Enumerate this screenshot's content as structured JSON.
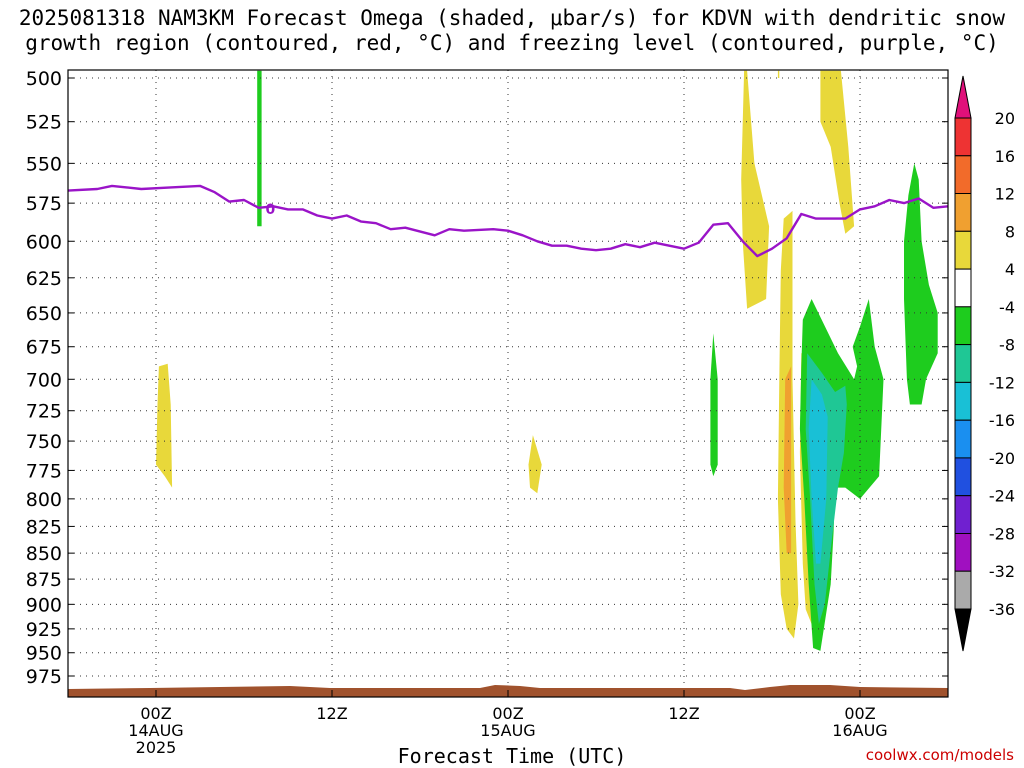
{
  "title_line1": "2025081318 NAM3KM Forecast Omega (shaded, μbar/s) for KDVN with dendritic snow",
  "title_line2": "growth region (contoured, red, °C) and freezing level (contoured, purple, °C)",
  "credit": "coolwx.com/models",
  "chart_data": {
    "type": "heatmap",
    "title": "2025081318 NAM3KM Forecast Omega (shaded, μbar/s) for KDVN with dendritic snow growth region (contoured, red, °C) and freezing level (contoured, purple, °C)",
    "xlabel": "Forecast Time (UTC)",
    "ylabel": "",
    "x_unit": "hours since 2025-08-13 18Z",
    "xlim": [
      0,
      60
    ],
    "ylim_hPa": [
      500,
      990
    ],
    "y_scale": "log (pressure)",
    "grid": true,
    "x_ticks": [
      {
        "h": 6,
        "label": "00Z",
        "sub1": "14AUG",
        "sub2": "2025"
      },
      {
        "h": 18,
        "label": "12Z",
        "sub1": "",
        "sub2": ""
      },
      {
        "h": 30,
        "label": "00Z",
        "sub1": "15AUG",
        "sub2": ""
      },
      {
        "h": 42,
        "label": "12Z",
        "sub1": "",
        "sub2": ""
      },
      {
        "h": 54,
        "label": "00Z",
        "sub1": "16AUG",
        "sub2": ""
      }
    ],
    "y_ticks": [
      500,
      525,
      550,
      575,
      600,
      625,
      650,
      675,
      700,
      725,
      750,
      775,
      800,
      825,
      850,
      875,
      900,
      925,
      950,
      975
    ],
    "colorbar": {
      "labels": [
        "20",
        "16",
        "12",
        "8",
        "4",
        "-4",
        "-8",
        "-12",
        "-16",
        "-20",
        "-24",
        "-28",
        "-32",
        "-36"
      ],
      "bands": [
        {
          "lo": 16,
          "hi": 20,
          "color": "#ee3333"
        },
        {
          "lo": 12,
          "hi": 16,
          "color": "#f26b2a"
        },
        {
          "lo": 8,
          "hi": 12,
          "color": "#f0a030"
        },
        {
          "lo": 4,
          "hi": 8,
          "color": "#e8d83a"
        },
        {
          "lo": -4,
          "hi": 4,
          "color": "#ffffff"
        },
        {
          "lo": -8,
          "hi": -4,
          "color": "#1ecc1e"
        },
        {
          "lo": -12,
          "hi": -8,
          "color": "#1fc795"
        },
        {
          "lo": -16,
          "hi": -12,
          "color": "#19c0d6"
        },
        {
          "lo": -20,
          "hi": -16,
          "color": "#1a8ff0"
        },
        {
          "lo": -24,
          "hi": -20,
          "color": "#2050e0"
        },
        {
          "lo": -28,
          "hi": -24,
          "color": "#7020d0"
        },
        {
          "lo": -32,
          "hi": -28,
          "color": "#a010c0"
        },
        {
          "lo": -36,
          "hi": -32,
          "color": "#aaaaaa"
        }
      ],
      "top_arrow_color": "#e0107a",
      "bottom_arrow_color": "#000000"
    },
    "freezing_level": {
      "label": "0",
      "color": "#9a14c8",
      "points": [
        [
          0,
          567
        ],
        [
          2,
          566
        ],
        [
          3,
          564
        ],
        [
          4,
          565
        ],
        [
          5,
          566
        ],
        [
          7,
          565
        ],
        [
          9,
          564
        ],
        [
          10,
          568
        ],
        [
          11,
          574
        ],
        [
          12,
          573
        ],
        [
          13,
          578
        ],
        [
          14,
          577
        ],
        [
          15,
          579
        ],
        [
          16,
          579
        ],
        [
          17,
          583
        ],
        [
          18,
          585
        ],
        [
          19,
          583
        ],
        [
          20,
          587
        ],
        [
          21,
          588
        ],
        [
          22,
          592
        ],
        [
          23,
          591
        ],
        [
          25,
          596
        ],
        [
          26,
          592
        ],
        [
          27,
          593
        ],
        [
          29,
          592
        ],
        [
          30,
          593
        ],
        [
          31,
          596
        ],
        [
          32,
          600
        ],
        [
          33,
          603
        ],
        [
          34,
          603
        ],
        [
          35,
          605
        ],
        [
          36,
          606
        ],
        [
          37,
          605
        ],
        [
          38,
          602
        ],
        [
          39,
          604
        ],
        [
          40,
          601
        ],
        [
          41,
          603
        ],
        [
          42,
          605
        ],
        [
          43,
          601
        ],
        [
          44,
          589
        ],
        [
          45,
          588
        ],
        [
          46,
          600
        ],
        [
          47,
          610
        ],
        [
          48,
          605
        ],
        [
          49,
          598
        ],
        [
          50,
          582
        ],
        [
          51,
          585
        ],
        [
          52,
          585
        ],
        [
          53,
          585
        ],
        [
          54,
          579
        ],
        [
          55,
          577
        ],
        [
          56,
          573
        ],
        [
          57,
          575
        ],
        [
          58,
          572
        ],
        [
          59,
          578
        ],
        [
          60,
          577
        ]
      ]
    },
    "omega_regions": [
      {
        "value": -6,
        "color": "#1ecc1e",
        "points": [
          [
            12.9,
            496
          ],
          [
            13.2,
            496
          ],
          [
            13.2,
            552
          ],
          [
            13.2,
            590
          ],
          [
            12.9,
            590
          ],
          [
            12.9,
            552
          ]
        ]
      },
      {
        "value": 6,
        "color": "#e8d83a",
        "points": [
          [
            6.2,
            690
          ],
          [
            6.8,
            688
          ],
          [
            7.0,
            720
          ],
          [
            7.1,
            790
          ],
          [
            6.6,
            780
          ],
          [
            6.0,
            770
          ],
          [
            6.1,
            720
          ]
        ]
      },
      {
        "value": 6,
        "color": "#e8d83a",
        "points": [
          [
            31.7,
            745
          ],
          [
            32.3,
            770
          ],
          [
            32.0,
            795
          ],
          [
            31.5,
            790
          ],
          [
            31.4,
            770
          ]
        ]
      },
      {
        "value": 6,
        "color": "#e8d83a",
        "points": [
          [
            46.1,
            496
          ],
          [
            46.3,
            496
          ],
          [
            46.8,
            550
          ],
          [
            47.8,
            590
          ],
          [
            47.6,
            640
          ],
          [
            46.3,
            647
          ],
          [
            46.0,
            600
          ],
          [
            45.9,
            560
          ]
        ]
      },
      {
        "value": 6,
        "color": "#e8d83a",
        "points": [
          [
            48.4,
            496
          ],
          [
            48.5,
            496
          ],
          [
            48.5,
            500
          ],
          [
            48.4,
            500
          ]
        ]
      },
      {
        "value": 6,
        "color": "#e8d83a",
        "points": [
          [
            51.3,
            496
          ],
          [
            52.7,
            496
          ],
          [
            53.2,
            540
          ],
          [
            53.6,
            590
          ],
          [
            53.0,
            595
          ],
          [
            52.6,
            575
          ],
          [
            52.0,
            540
          ],
          [
            51.3,
            525
          ]
        ]
      },
      {
        "value": 6,
        "color": "#e8d83a",
        "points": [
          [
            48.8,
            585
          ],
          [
            49.4,
            580
          ],
          [
            49.4,
            700
          ],
          [
            49.6,
            820
          ],
          [
            49.8,
            900
          ],
          [
            49.5,
            935
          ],
          [
            49.0,
            925
          ],
          [
            48.6,
            890
          ],
          [
            48.4,
            800
          ],
          [
            48.5,
            700
          ],
          [
            48.6,
            620
          ]
        ]
      },
      {
        "value": 6,
        "color": "#e8d83a",
        "points": [
          [
            50.0,
            680
          ],
          [
            50.6,
            680
          ],
          [
            50.9,
            760
          ],
          [
            50.9,
            860
          ],
          [
            50.7,
            920
          ],
          [
            50.3,
            905
          ],
          [
            50.1,
            860
          ],
          [
            49.9,
            760
          ]
        ]
      },
      {
        "value": 10,
        "color": "#f0a030",
        "points": [
          [
            48.9,
            700
          ],
          [
            49.3,
            690
          ],
          [
            49.3,
            790
          ],
          [
            49.3,
            850
          ],
          [
            49.0,
            850
          ],
          [
            48.8,
            790
          ]
        ]
      },
      {
        "value": -6,
        "color": "#1ecc1e",
        "points": [
          [
            44.0,
            665
          ],
          [
            44.3,
            700
          ],
          [
            44.3,
            770
          ],
          [
            44.0,
            780
          ],
          [
            43.8,
            770
          ],
          [
            43.8,
            700
          ]
        ]
      },
      {
        "value": -6,
        "color": "#1ecc1e",
        "points": [
          [
            50.7,
            640
          ],
          [
            52.5,
            680
          ],
          [
            53.6,
            700
          ],
          [
            53.8,
            690
          ],
          [
            53.5,
            675
          ],
          [
            54.0,
            660
          ],
          [
            54.6,
            640
          ],
          [
            55.0,
            675
          ],
          [
            55.6,
            700
          ],
          [
            55.3,
            780
          ],
          [
            54.0,
            800
          ],
          [
            53.0,
            790
          ],
          [
            52.3,
            790
          ],
          [
            52.2,
            830
          ],
          [
            52.0,
            880
          ],
          [
            51.3,
            948
          ],
          [
            50.8,
            945
          ],
          [
            50.5,
            880
          ],
          [
            50.2,
            800
          ],
          [
            49.9,
            740
          ],
          [
            50.0,
            690
          ],
          [
            50.1,
            655
          ]
        ]
      },
      {
        "value": -10,
        "color": "#1fc795",
        "points": [
          [
            50.4,
            680
          ],
          [
            51.4,
            695
          ],
          [
            52.3,
            710
          ],
          [
            53.0,
            705
          ],
          [
            53.1,
            720
          ],
          [
            52.9,
            760
          ],
          [
            52.5,
            790
          ],
          [
            52.1,
            835
          ],
          [
            51.6,
            900
          ],
          [
            51.2,
            920
          ],
          [
            50.9,
            880
          ],
          [
            50.6,
            800
          ],
          [
            50.3,
            740
          ]
        ]
      },
      {
        "value": -14,
        "color": "#19c0d6",
        "points": [
          [
            50.7,
            700
          ],
          [
            51.4,
            712
          ],
          [
            51.8,
            730
          ],
          [
            51.7,
            800
          ],
          [
            51.3,
            860
          ],
          [
            51.0,
            860
          ],
          [
            50.7,
            800
          ],
          [
            50.5,
            740
          ]
        ]
      },
      {
        "value": -6,
        "color": "#1ecc1e",
        "points": [
          [
            57.7,
            550
          ],
          [
            58.0,
            560
          ],
          [
            58.2,
            600
          ],
          [
            58.7,
            630
          ],
          [
            59.3,
            650
          ],
          [
            59.3,
            680
          ],
          [
            58.5,
            700
          ],
          [
            58.2,
            720
          ],
          [
            57.4,
            720
          ],
          [
            57.2,
            700
          ],
          [
            57.0,
            640
          ],
          [
            57.0,
            600
          ],
          [
            57.3,
            570
          ]
        ]
      }
    ]
  },
  "xaxis_title": "Forecast Time (UTC)"
}
